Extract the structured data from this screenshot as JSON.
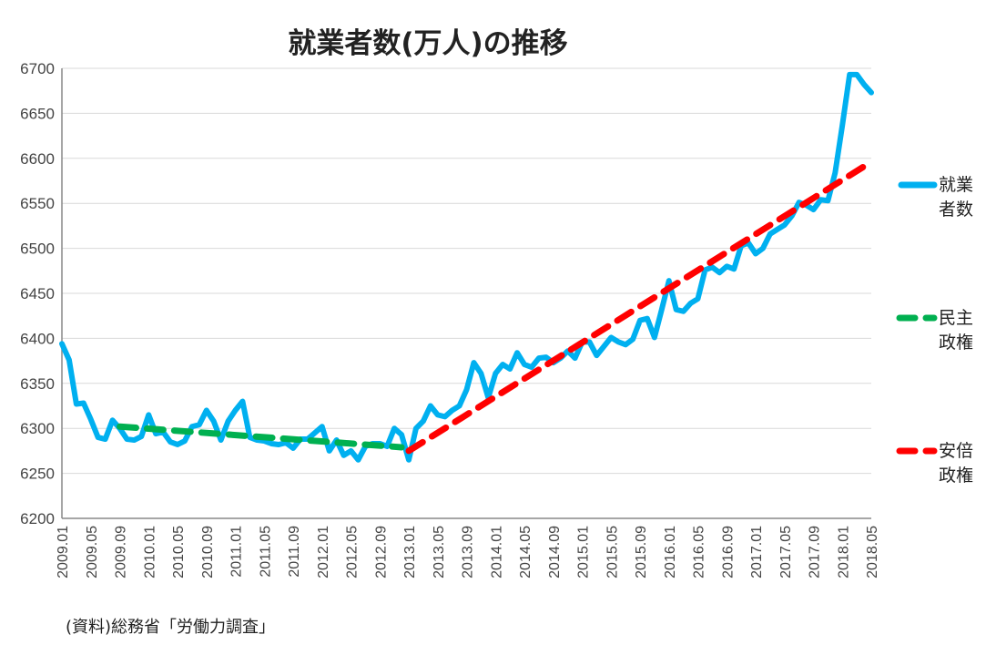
{
  "chart_data": {
    "type": "line",
    "title": "就業者数(万人)の推移",
    "xlabel": "",
    "ylabel": "",
    "ylim": [
      6200,
      6700
    ],
    "yticks": [
      6200,
      6250,
      6300,
      6350,
      6400,
      6450,
      6500,
      6550,
      6600,
      6650,
      6700
    ],
    "grid": true,
    "legend_position": "right",
    "x_start": "2009.01",
    "x_tick_labels": [
      "2009.01",
      "2009.05",
      "2009.09",
      "2010.01",
      "2010.05",
      "2010.09",
      "2011.01",
      "2011.05",
      "2011.09",
      "2012.01",
      "2012.05",
      "2012.09",
      "2013.01",
      "2013.05",
      "2013.09",
      "2014.01",
      "2014.05",
      "2014.09",
      "2015.01",
      "2015.05",
      "2015.09",
      "2016.01",
      "2016.05",
      "2016.09",
      "2017.01",
      "2017.05",
      "2017.09",
      "2018.01",
      "2018.05"
    ],
    "series": [
      {
        "name": "就業者数",
        "color": "#00b0f0",
        "style": "solid",
        "values": [
          6394,
          6376,
          6327,
          6328,
          6310,
          6290,
          6288,
          6309,
          6300,
          6288,
          6287,
          6291,
          6315,
          6294,
          6296,
          6285,
          6282,
          6286,
          6302,
          6304,
          6320,
          6308,
          6287,
          6308,
          6320,
          6330,
          6290,
          6287,
          6286,
          6283,
          6282,
          6284,
          6278,
          6288,
          6288,
          6295,
          6302,
          6275,
          6287,
          6270,
          6275,
          6265,
          6280,
          6283,
          6283,
          6280,
          6300,
          6293,
          6265,
          6300,
          6308,
          6325,
          6315,
          6313,
          6320,
          6325,
          6343,
          6373,
          6361,
          6334,
          6361,
          6371,
          6366,
          6384,
          6371,
          6368,
          6378,
          6379,
          6373,
          6378,
          6386,
          6378,
          6396,
          6396,
          6381,
          6391,
          6401,
          6396,
          6393,
          6399,
          6420,
          6422,
          6401,
          6432,
          6464,
          6432,
          6430,
          6439,
          6444,
          6476,
          6479,
          6473,
          6480,
          6477,
          6503,
          6506,
          6494,
          6500,
          6516,
          6521,
          6526,
          6536,
          6551,
          6548,
          6543,
          6554,
          6553,
          6584,
          6637,
          6693,
          6693,
          6682,
          6673
        ]
      },
      {
        "name": "民主政権",
        "color": "#00b050",
        "style": "dashed",
        "trend": {
          "from_index": 8,
          "to_index": 47,
          "from_value": 6302,
          "to_value": 6279
        }
      },
      {
        "name": "安倍政権",
        "color": "#ff0000",
        "style": "dashed",
        "trend": {
          "from_index": 48,
          "to_index": 112,
          "from_value": 6275,
          "to_value": 6596
        }
      }
    ],
    "legend": [
      {
        "line1": "就業",
        "line2": "者数"
      },
      {
        "line1": "民主",
        "line2": "政権"
      },
      {
        "line1": "安倍",
        "line2": "政権"
      }
    ]
  },
  "source_note": "(資料)総務省「労働力調査」"
}
